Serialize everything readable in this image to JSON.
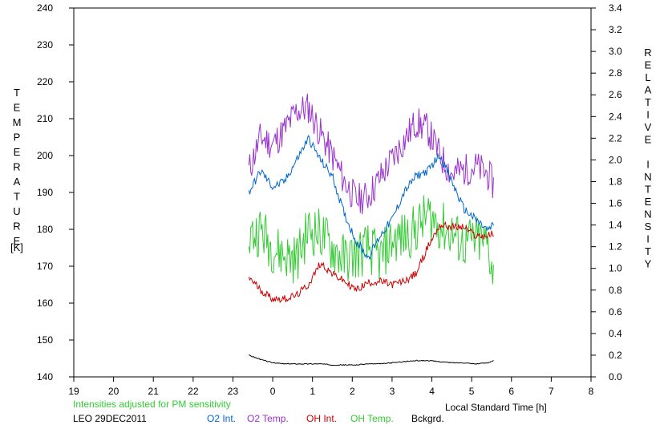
{
  "chart_data": {
    "type": "line",
    "title": "",
    "xlabel": "Local Standard Time [h]",
    "ylabel_left": "TEMPERATURE",
    "ylabel_left_unit": "[K]",
    "ylabel_right": "RELATIVE INTENSITY",
    "xlim": [
      19,
      32
    ],
    "x_tick_values": [
      19,
      20,
      21,
      22,
      23,
      24,
      25,
      26,
      27,
      28,
      29,
      30,
      31,
      32
    ],
    "x_tick_labels": [
      "19",
      "20",
      "21",
      "22",
      "23",
      "0",
      "1",
      "2",
      "3",
      "4",
      "5",
      "6",
      "7",
      "8"
    ],
    "ylim_left": [
      140,
      240
    ],
    "y_left_ticks": [
      140,
      150,
      160,
      170,
      180,
      190,
      200,
      210,
      220,
      230,
      240
    ],
    "ylim_right": [
      0.0,
      3.4
    ],
    "y_right_ticks": [
      "0.0",
      "0.2",
      "0.4",
      "0.6",
      "0.8",
      "1.0",
      "1.2",
      "1.4",
      "1.6",
      "1.8",
      "2.0",
      "2.2",
      "2.4",
      "2.6",
      "2.8",
      "3.0",
      "3.2",
      "3.4"
    ],
    "grid": false,
    "note": "Intensities adjusted for PM sensitivity",
    "station": "LEO 29DEC2011",
    "series": [
      {
        "name": "O2 Int.",
        "axis": "right",
        "color": "#0066cc",
        "noise": 0.04,
        "x": [
          23.4,
          23.7,
          24.0,
          24.3,
          24.6,
          24.9,
          25.2,
          25.5,
          25.8,
          26.1,
          26.4,
          26.7,
          27.0,
          27.3,
          27.6,
          27.9,
          28.2,
          28.5,
          28.8,
          29.1,
          29.4,
          29.55
        ],
        "y": [
          1.7,
          1.9,
          1.75,
          1.8,
          2.0,
          2.2,
          2.0,
          1.85,
          1.5,
          1.25,
          1.1,
          1.3,
          1.45,
          1.7,
          1.85,
          1.9,
          2.05,
          1.8,
          1.55,
          1.45,
          1.35,
          1.4
        ]
      },
      {
        "name": "O2 Temp.",
        "axis": "left",
        "color": "#9933cc",
        "noise": 4.5,
        "x": [
          23.4,
          23.7,
          24.0,
          24.3,
          24.6,
          24.9,
          25.2,
          25.5,
          25.8,
          26.1,
          26.4,
          26.7,
          27.0,
          27.3,
          27.6,
          27.9,
          28.2,
          28.5,
          28.8,
          29.1,
          29.4,
          29.55
        ],
        "y": [
          196,
          205,
          203,
          207,
          212,
          213,
          206,
          200,
          193,
          188,
          189,
          194,
          199,
          204,
          209,
          207,
          200,
          195,
          196,
          197,
          195,
          192
        ]
      },
      {
        "name": "OH Int.",
        "axis": "right",
        "color": "#cc0000",
        "noise": 0.035,
        "x": [
          23.4,
          23.7,
          24.0,
          24.3,
          24.6,
          24.9,
          25.2,
          25.5,
          25.8,
          26.1,
          26.4,
          26.7,
          27.0,
          27.3,
          27.6,
          27.9,
          28.2,
          28.5,
          28.8,
          29.1,
          29.4,
          29.55
        ],
        "y": [
          0.92,
          0.8,
          0.72,
          0.72,
          0.75,
          0.85,
          1.05,
          0.95,
          0.88,
          0.8,
          0.87,
          0.88,
          0.85,
          0.88,
          0.95,
          1.2,
          1.4,
          1.38,
          1.38,
          1.3,
          1.3,
          1.32
        ]
      },
      {
        "name": "OH Temp.",
        "axis": "left",
        "color": "#33cc33",
        "noise": 7,
        "x": [
          23.4,
          23.7,
          24.0,
          24.3,
          24.6,
          24.9,
          25.2,
          25.5,
          25.8,
          26.1,
          26.4,
          26.7,
          27.0,
          27.3,
          27.6,
          27.9,
          28.2,
          28.5,
          28.8,
          29.1,
          29.4,
          29.55
        ],
        "y": [
          178,
          180,
          175,
          173,
          172,
          180,
          179,
          175,
          172,
          173,
          175,
          172,
          177,
          178,
          180,
          184,
          181,
          179,
          176,
          177,
          176,
          168
        ]
      },
      {
        "name": "Bckgrd.",
        "axis": "right",
        "color": "#000000",
        "noise": 0.004,
        "x": [
          23.4,
          23.7,
          24.0,
          24.3,
          24.6,
          24.9,
          25.2,
          25.5,
          25.8,
          26.1,
          26.4,
          26.7,
          27.0,
          27.3,
          27.6,
          27.9,
          28.2,
          28.5,
          28.8,
          29.1,
          29.4,
          29.55
        ],
        "y": [
          0.2,
          0.16,
          0.13,
          0.12,
          0.12,
          0.12,
          0.12,
          0.11,
          0.11,
          0.11,
          0.12,
          0.12,
          0.13,
          0.14,
          0.15,
          0.15,
          0.14,
          0.13,
          0.13,
          0.12,
          0.13,
          0.15
        ]
      }
    ]
  }
}
